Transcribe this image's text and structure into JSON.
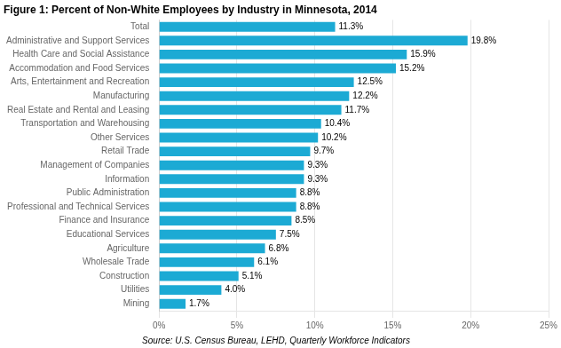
{
  "chart_data": {
    "type": "bar",
    "orientation": "horizontal",
    "title": "Figure 1: Percent of Non-White Employees by Industry in Minnesota, 2014",
    "annotations": [
      "Source: U.S. Census Bureau, LEHD, Quarterly Workforce Indicators"
    ],
    "categories": [
      "Mining",
      "Utilities",
      "Construction",
      "Wholesale Trade",
      "Agriculture",
      "Educational Services",
      "Finance and Insurance",
      "Professional and Technical Services",
      "Public Administration",
      "Information",
      "Management of Companies",
      "Retail Trade",
      "Other Services",
      "Transportation and Warehousing",
      "Real Estate and Rental and Leasing",
      "Manufacturing",
      "Arts, Entertainment and Recreation",
      "Accommodation and Food Services",
      "Health Care and Social Assistance",
      "Administrative and Support Services",
      "Total"
    ],
    "values": [
      1.7,
      4.0,
      5.1,
      6.1,
      6.8,
      7.5,
      8.5,
      8.8,
      8.8,
      9.3,
      9.3,
      9.7,
      10.2,
      10.4,
      11.7,
      12.2,
      12.5,
      15.2,
      15.9,
      19.8,
      11.3
    ],
    "value_labels": [
      "1.7%",
      "4.0%",
      "5.1%",
      "6.1%",
      "6.8%",
      "7.5%",
      "8.5%",
      "8.8%",
      "8.8%",
      "9.3%",
      "9.3%",
      "9.7%",
      "10.2%",
      "10.4%",
      "11.7%",
      "12.2%",
      "12.5%",
      "15.2%",
      "15.9%",
      "19.8%",
      "11.3%"
    ],
    "data_labels": true,
    "color": "#1caad4",
    "xlim": [
      0,
      25
    ],
    "xticks": [
      {
        "value": 0,
        "label": "0%"
      },
      {
        "value": 5,
        "label": "5%"
      },
      {
        "value": 10,
        "label": "10%"
      },
      {
        "value": 15,
        "label": "15%"
      },
      {
        "value": 20,
        "label": "20%"
      },
      {
        "value": 25,
        "label": "25%"
      }
    ],
    "grid": true
  }
}
